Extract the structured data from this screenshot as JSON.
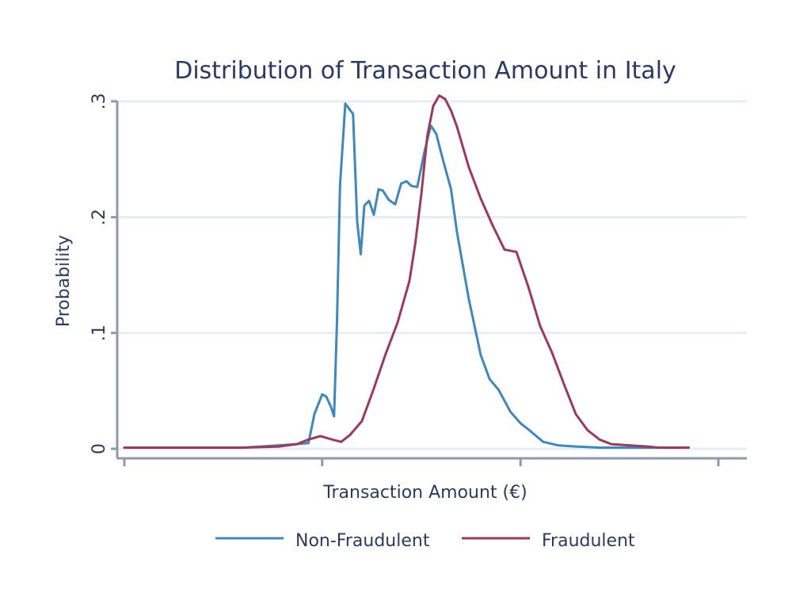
{
  "chart_data": {
    "type": "line",
    "title": "Distribution of Transaction Amount in Italy",
    "xlabel": "Transaction Amount (€)",
    "ylabel": "Probability",
    "ylim": [
      0,
      0.3
    ],
    "xlim": [
      0,
      100
    ],
    "yticks": [
      {
        "value": 0,
        "label": "0"
      },
      {
        "value": 0.1,
        "label": ".1"
      },
      {
        "value": 0.2,
        "label": ".2"
      },
      {
        "value": 0.3,
        "label": ".3"
      }
    ],
    "xticks": [
      0,
      33.3,
      66.7,
      100
    ],
    "grid": true,
    "legend_position": "bottom",
    "series": [
      {
        "name": "Non-Fraudulent",
        "color": "#3d88c0",
        "x": [
          0,
          10,
          20,
          26,
          29,
          31,
          32,
          33.3,
          34,
          34.8,
          35.3,
          35.8,
          36.3,
          37.2,
          38.5,
          39.2,
          39.8,
          40.4,
          41.2,
          42,
          42.8,
          43.5,
          44.5,
          45.6,
          46.6,
          47.5,
          48.3,
          49.3,
          50.5,
          51.6,
          52.5,
          53.5,
          55,
          56,
          58,
          60,
          61.5,
          63,
          65,
          66.7,
          68.2,
          70.5,
          73,
          76,
          80,
          85,
          90,
          95
        ],
        "y": [
          0.001,
          0.001,
          0.001,
          0.003,
          0.004,
          0.005,
          0.03,
          0.047,
          0.045,
          0.036,
          0.028,
          0.11,
          0.227,
          0.298,
          0.289,
          0.196,
          0.168,
          0.21,
          0.214,
          0.202,
          0.224,
          0.223,
          0.215,
          0.211,
          0.229,
          0.231,
          0.227,
          0.226,
          0.256,
          0.279,
          0.272,
          0.252,
          0.224,
          0.187,
          0.129,
          0.081,
          0.06,
          0.051,
          0.032,
          0.022,
          0.016,
          0.006,
          0.003,
          0.002,
          0.001,
          0.001,
          0.001,
          0.001
        ]
      },
      {
        "name": "Fraudulent",
        "color": "#a0385a",
        "x": [
          0,
          10,
          20,
          26,
          29,
          31,
          33,
          35,
          36.5,
          38,
          40,
          42,
          44,
          46,
          48,
          49,
          50,
          51,
          52,
          53,
          54,
          55,
          56,
          58,
          60,
          62,
          64,
          66,
          68,
          70,
          72,
          74,
          76,
          78,
          80,
          82,
          85,
          88,
          90,
          95
        ],
        "y": [
          0.001,
          0.001,
          0.001,
          0.002,
          0.004,
          0.008,
          0.011,
          0.008,
          0.006,
          0.012,
          0.024,
          0.052,
          0.082,
          0.109,
          0.145,
          0.178,
          0.22,
          0.27,
          0.296,
          0.305,
          0.302,
          0.292,
          0.278,
          0.243,
          0.216,
          0.193,
          0.172,
          0.17,
          0.14,
          0.106,
          0.083,
          0.056,
          0.03,
          0.016,
          0.008,
          0.004,
          0.003,
          0.002,
          0.001,
          0.001
        ]
      }
    ]
  }
}
